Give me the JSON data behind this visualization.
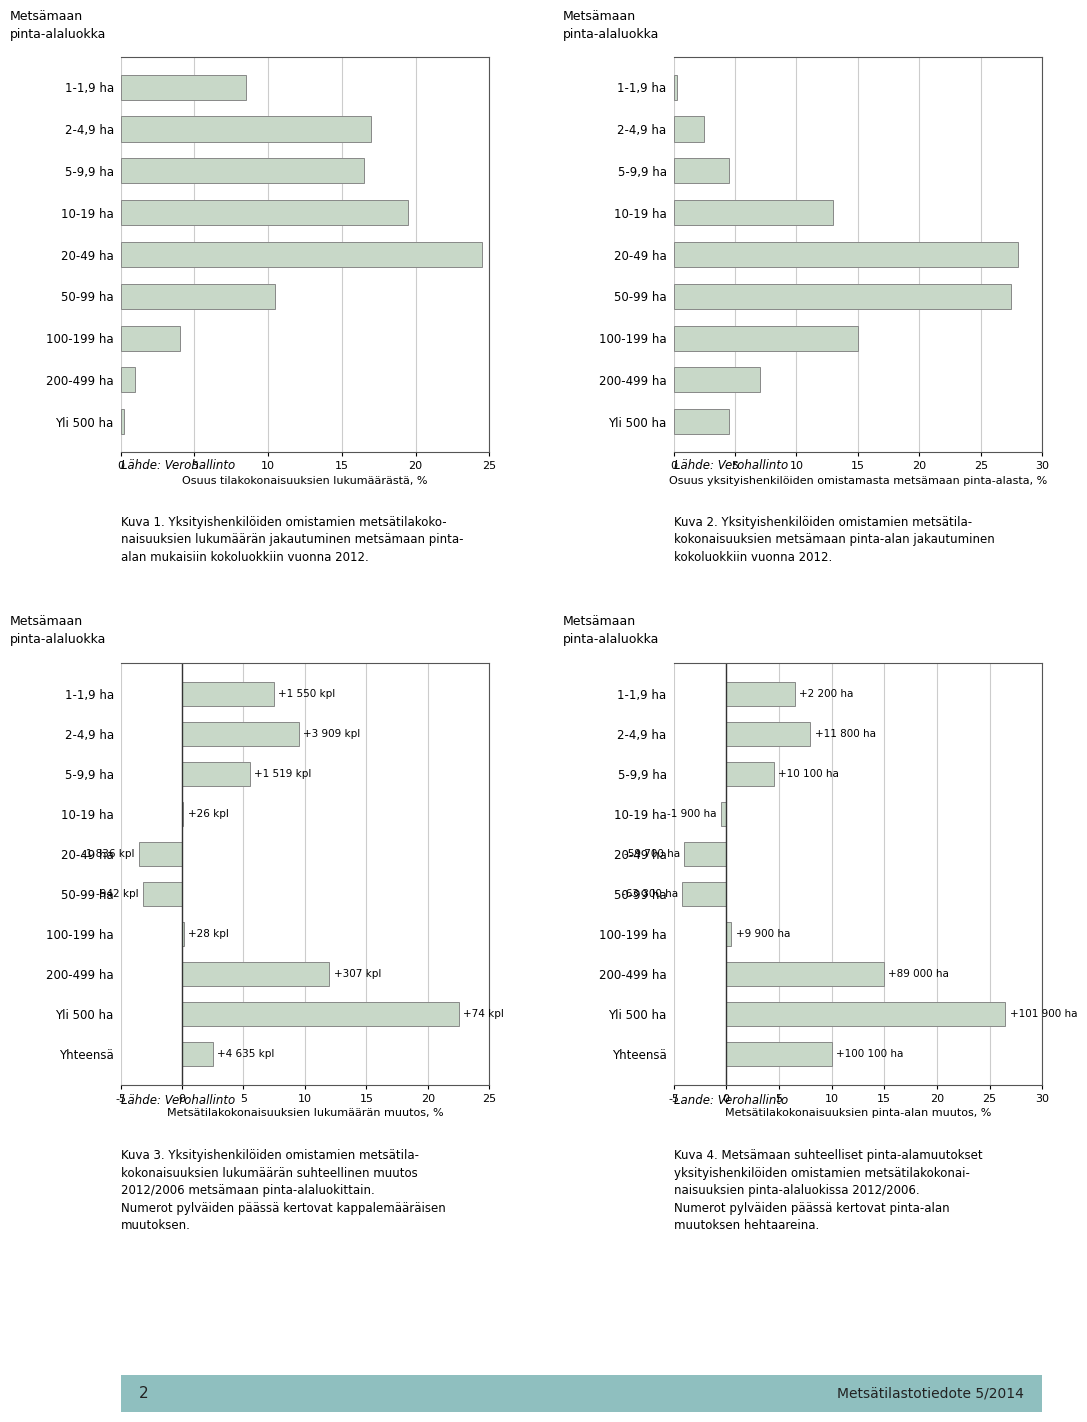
{
  "categories": [
    "1-1,9 ha",
    "2-4,9 ha",
    "5-9,9 ha",
    "10-19 ha",
    "20-49 ha",
    "50-99 ha",
    "100-199 ha",
    "200-499 ha",
    "Yli 500 ha"
  ],
  "chart1_values": [
    8.5,
    17.0,
    16.5,
    19.5,
    24.5,
    10.5,
    4.0,
    1.0,
    0.2
  ],
  "chart1_xlabel": "Osuus tilakokonaisuuksien lukumäärästä, %",
  "chart1_xlim": [
    0,
    25
  ],
  "chart1_xticks": [
    0,
    5,
    10,
    15,
    20,
    25
  ],
  "chart2_values": [
    0.3,
    2.5,
    4.5,
    13.0,
    28.0,
    27.5,
    15.0,
    7.0,
    4.5
  ],
  "chart2_xlabel": "Osuus yksityishenkilöiden omistamasta metsämaan pinta-alasta, %",
  "chart2_xlim": [
    0,
    30
  ],
  "chart2_xticks": [
    0,
    5,
    10,
    15,
    20,
    25,
    30
  ],
  "chart3_categories": [
    "1-1,9 ha",
    "2-4,9 ha",
    "5-9,9 ha",
    "10-19 ha",
    "20-49 ha",
    "50-99 ha",
    "100-199 ha",
    "200-499 ha",
    "Yli 500 ha",
    "Yhteensä"
  ],
  "chart3_values": [
    7.5,
    9.5,
    5.5,
    0.1,
    -3.5,
    -3.2,
    0.15,
    12.0,
    22.5,
    2.5
  ],
  "chart3_labels": [
    "+1 550 kpl",
    "+3 909 kpl",
    "+1 519 kpl",
    "+26 kpl",
    "-1 836 kpl",
    "-942 kpl",
    "+28 kpl",
    "+307 kpl",
    "+74 kpl",
    "+4 635 kpl"
  ],
  "chart3_xlabel": "Metsätilakokonaisuuksien lukumäärän muutos, %",
  "chart3_xlim": [
    -5,
    25
  ],
  "chart3_xticks": [
    -5,
    0,
    5,
    10,
    15,
    20,
    25
  ],
  "chart4_categories": [
    "1-1,9 ha",
    "2-4,9 ha",
    "5-9,9 ha",
    "10-19 ha",
    "20-49 ha",
    "50-99 ha",
    "100-199 ha",
    "200-499 ha",
    "Yli 500 ha",
    "Yhteensä"
  ],
  "chart4_values": [
    6.5,
    8.0,
    4.5,
    -0.5,
    -4.0,
    -4.2,
    0.5,
    15.0,
    26.5,
    10.0
  ],
  "chart4_labels": [
    "+2 200 ha",
    "+11 800 ha",
    "+10 100 ha",
    "-1 900 ha",
    "-59 700 ha",
    "-63 300 ha",
    "+9 900 ha",
    "+89 000 ha",
    "+101 900 ha",
    "+100 100 ha"
  ],
  "chart4_xlabel": "Metsätilakokonaisuuksien pinta-alan muutos, %",
  "chart4_xlim": [
    -5,
    30
  ],
  "chart4_xticks": [
    -5,
    0,
    5,
    10,
    15,
    20,
    25,
    30
  ],
  "ylabel_title": "Metsämaan\npinta-alaluokka",
  "bar_color": "#c8d8c8",
  "bar_edgecolor": "#888888",
  "source_text": "Lähde: Verohallinto",
  "source_text2": "Lande: Verohallinto",
  "caption1": "Kuva 1. Yksityishenkilöiden omistamien metsätilakoko-\nnaisuuksien lukumäärän jakautuminen metsämaan pinta-\nalan mukaisiin kokoluokkiin vuonna 2012.",
  "caption2": "Kuva 2. Yksityishenkilöiden omistamien metsätila-\nkokonaisuuksien metsämaan pinta-alan jakautuminen\nkokoluokkiin vuonna 2012.",
  "caption3": "Kuva 3. Yksityishenkilöiden omistamien metsätila-\nkokonaisuuksien lukumäärän suhteellinen muutos\n2012/2006 metsämaan pinta-alaluokittain.\nNumerot pylväiden päässä kertovat kappalemääräisen\nmuutoksen.",
  "caption4": "Kuva 4. Metsämaan suhteelliset pinta-alamuutokset\nyksityishenkilöiden omistamien metsätilakokonai-\nnaisuuksien pinta-alaluokissa 2012/2006.\nNumerot pylväiden päässä kertovat pinta-alan\nmuutoksen hehtaareina.",
  "footer_color": "#8fbfbf",
  "footer_num": "2",
  "footer_title": "Metsätilastotiedote 5/2014",
  "page_bg": "#ffffff"
}
